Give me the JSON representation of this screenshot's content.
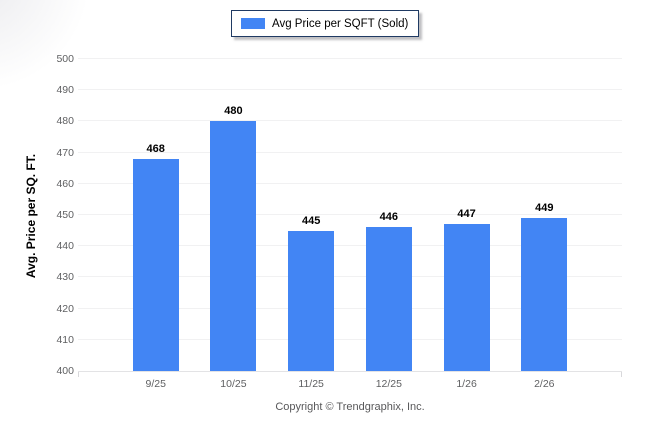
{
  "legend": {
    "label": "Avg Price per SQFT (Sold)",
    "swatch_color": "#4285f4"
  },
  "chart_data": {
    "type": "bar",
    "title": "",
    "categories": [
      "9/25",
      "10/25",
      "11/25",
      "12/25",
      "1/26",
      "2/26"
    ],
    "series": [
      {
        "name": "Avg Price per SQFT (Sold)",
        "values": [
          468,
          480,
          445,
          446,
          447,
          449
        ]
      }
    ],
    "xlabel": "",
    "ylabel": "Avg. Price per SQ. FT.",
    "ylim": [
      400,
      500
    ],
    "ytick_step": 10,
    "yticks": [
      400,
      410,
      420,
      430,
      440,
      450,
      460,
      470,
      480,
      490,
      500
    ],
    "grid": true,
    "value_labels": true,
    "legend_position": "top-center",
    "bar_color": "#4285f4"
  },
  "colors": {
    "bar": "#4285f4",
    "gridline": "#f1f1f2",
    "baseline": "#e3e3e5",
    "tick_text": "#5f6062",
    "legend_border": "#1f3a63"
  },
  "footer": {
    "copyright": "Copyright © Trendgraphix, Inc."
  }
}
